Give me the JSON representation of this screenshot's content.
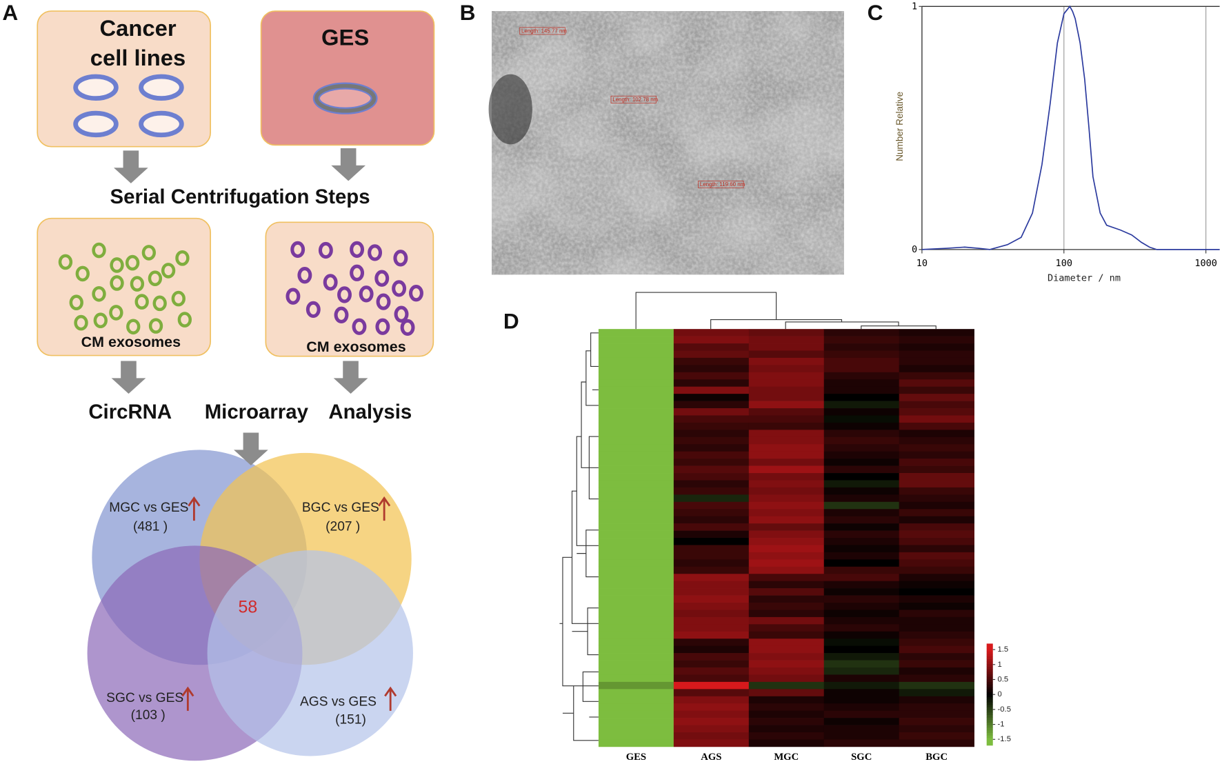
{
  "panel_a": {
    "panel_label": "A",
    "cancer_box": [
      "Cancer",
      "cell lines"
    ],
    "ges_box": "GES",
    "step": "Serial Centrifugation Steps",
    "exosomes": [
      "CM exosomes",
      "CM exosomes"
    ],
    "analysis": [
      "CircRNA",
      "Microarray",
      "Analysis"
    ],
    "venn": {
      "sets": [
        {
          "name": "MGC vs GES",
          "count": "(481 )"
        },
        {
          "name": "BGC vs GES",
          "count": "(207 )"
        },
        {
          "name": "SGC vs GES",
          "count": "(103 )"
        },
        {
          "name": "AGS vs GES",
          "count": "(151)"
        }
      ],
      "overlap": 58
    }
  },
  "panel_b": {
    "panel_label": "B",
    "measurements": [
      "Length: 145.77 nm",
      "Length: 102.78 nm",
      "Length: 119.60 nm"
    ]
  },
  "chart_data": [
    {
      "type": "line",
      "panel_label": "C",
      "y_label": "Number Relative",
      "x_label": "Diameter / nm",
      "log_x": true,
      "xgrid": true,
      "color": "#2b3a9e",
      "x": [
        10,
        15,
        20,
        25,
        30,
        40,
        50,
        60,
        70,
        80,
        90,
        100,
        110,
        115,
        120,
        130,
        140,
        150,
        160,
        180,
        200,
        250,
        300,
        350,
        400,
        450,
        500,
        700,
        1000,
        1250
      ],
      "values": [
        0,
        0.005,
        0.01,
        0.005,
        0,
        0.02,
        0.05,
        0.15,
        0.35,
        0.6,
        0.85,
        0.97,
        1,
        0.98,
        0.95,
        0.85,
        0.7,
        0.5,
        0.3,
        0.15,
        0.1,
        0.08,
        0.06,
        0.03,
        0.01,
        0,
        0,
        0,
        0,
        0
      ],
      "xlim": [
        10,
        1250
      ],
      "xticks": [
        10,
        100,
        1000
      ],
      "ylim": [
        0,
        1
      ],
      "yticks": [
        0,
        1
      ]
    },
    {
      "type": "heatmap",
      "panel_label": "D",
      "columns": [
        "GES",
        "AGS",
        "MGC",
        "SGC",
        "BGC"
      ],
      "color_low": "#7dbd3f",
      "color_mid": "#000000",
      "color_high": "#d7191c",
      "zlim": [
        -1.7,
        1.7
      ],
      "zticks": [
        1.5,
        1,
        0.5,
        0,
        -0.5,
        -1,
        -1.5
      ],
      "values": [
        [
          -1.5,
          0.8,
          0.7,
          0.3,
          0.2
        ],
        [
          -1.5,
          0.9,
          0.8,
          0.4,
          0.3
        ],
        [
          -1.5,
          0.6,
          0.8,
          0.3,
          0.2
        ],
        [
          -1.5,
          0.7,
          0.6,
          0.4,
          0.3
        ],
        [
          -1.5,
          0.4,
          0.9,
          0.5,
          0.3
        ],
        [
          -1.5,
          0.3,
          0.8,
          0.5,
          0.2
        ],
        [
          -1.5,
          0.5,
          0.9,
          0.3,
          0.4
        ],
        [
          -1.5,
          0.3,
          0.9,
          0.2,
          0.6
        ],
        [
          -1.5,
          0.9,
          0.8,
          0.2,
          0.4
        ],
        [
          -1.5,
          0.1,
          0.8,
          0,
          0.7
        ],
        [
          -1.5,
          0.3,
          1,
          -0.2,
          0.5
        ],
        [
          -1.5,
          0.8,
          0.6,
          0.1,
          0.6
        ],
        [
          -1.5,
          0.5,
          0.5,
          -0.1,
          0.8
        ],
        [
          -1.5,
          0.4,
          0.4,
          0.1,
          0.5
        ],
        [
          -1.5,
          0.3,
          0.9,
          0.3,
          0.2
        ],
        [
          -1.5,
          0.4,
          0.9,
          0.4,
          0.3
        ],
        [
          -1.5,
          0.3,
          1,
          0.3,
          0.4
        ],
        [
          -1.5,
          0.5,
          1,
          0.2,
          0.3
        ],
        [
          -1.5,
          0.4,
          0.8,
          0.1,
          0.5
        ],
        [
          -1.5,
          0.6,
          1.1,
          0.3,
          0.4
        ],
        [
          -1.5,
          0.5,
          0.8,
          0,
          0.7
        ],
        [
          -1.5,
          0.3,
          0.9,
          -0.2,
          0.7
        ],
        [
          -1.5,
          0.4,
          0.8,
          0.1,
          0.4
        ],
        [
          -1.5,
          -0.3,
          0.9,
          0.2,
          0.3
        ],
        [
          -1.5,
          0.5,
          1,
          -0.4,
          0.2
        ],
        [
          -1.5,
          0.4,
          0.9,
          0.2,
          0.4
        ],
        [
          -1.5,
          0.3,
          1,
          0.3,
          0.2
        ],
        [
          -1.5,
          0.5,
          0.7,
          0.1,
          0.5
        ],
        [
          -1.5,
          0.2,
          0.9,
          0.3,
          0.6
        ],
        [
          -1.5,
          0,
          1,
          0.2,
          0.5
        ],
        [
          -1.5,
          0.4,
          1.1,
          0.1,
          0.3
        ],
        [
          -1.5,
          0.4,
          1,
          0.2,
          0.6
        ],
        [
          -1.5,
          0.3,
          1.1,
          0,
          0.5
        ],
        [
          -1.5,
          0.4,
          1,
          0.4,
          0.4
        ],
        [
          -1.5,
          1,
          0.5,
          0.5,
          0.2
        ],
        [
          -1.5,
          0.9,
          0.3,
          0.2,
          0.1
        ],
        [
          -1.5,
          0.9,
          0.6,
          0.1,
          0
        ],
        [
          -1.5,
          1,
          0.3,
          0.3,
          0.2
        ],
        [
          -1.5,
          0.9,
          0.4,
          0.2,
          0.1
        ],
        [
          -1.5,
          0.8,
          0.3,
          0.1,
          0.3
        ],
        [
          -1.5,
          0.9,
          0.8,
          0.2,
          0.2
        ],
        [
          -1.5,
          0.9,
          0.5,
          0.3,
          0.2
        ],
        [
          -1.5,
          1,
          0.4,
          0.1,
          0.3
        ],
        [
          -1.5,
          0.3,
          1,
          -0.1,
          0.4
        ],
        [
          -1.5,
          0.2,
          1,
          0,
          0.5
        ],
        [
          -1.5,
          0.5,
          0.9,
          -0.2,
          0.3
        ],
        [
          -1.5,
          0.4,
          1,
          -0.4,
          0.4
        ],
        [
          -1.5,
          0.6,
          0.9,
          -0.3,
          0.2
        ],
        [
          -1.5,
          0.5,
          0.8,
          0.2,
          0.3
        ],
        [
          -1.2,
          1.6,
          -0.4,
          -0.2,
          -0.4
        ],
        [
          -1.5,
          0.6,
          0.7,
          0.1,
          -0.2
        ],
        [
          -1.5,
          0.9,
          0.2,
          0.1,
          0.2
        ],
        [
          -1.5,
          1,
          0.3,
          0.2,
          0.3
        ],
        [
          -1.5,
          0.9,
          0.2,
          0.3,
          0.3
        ],
        [
          -1.5,
          1,
          0.3,
          0.1,
          0.4
        ],
        [
          -1.5,
          0.9,
          0.2,
          0.2,
          0.3
        ],
        [
          -1.5,
          0.8,
          0.3,
          0.2,
          0.4
        ],
        [
          -1.5,
          0.9,
          0.2,
          0.3,
          0.3
        ]
      ]
    }
  ]
}
